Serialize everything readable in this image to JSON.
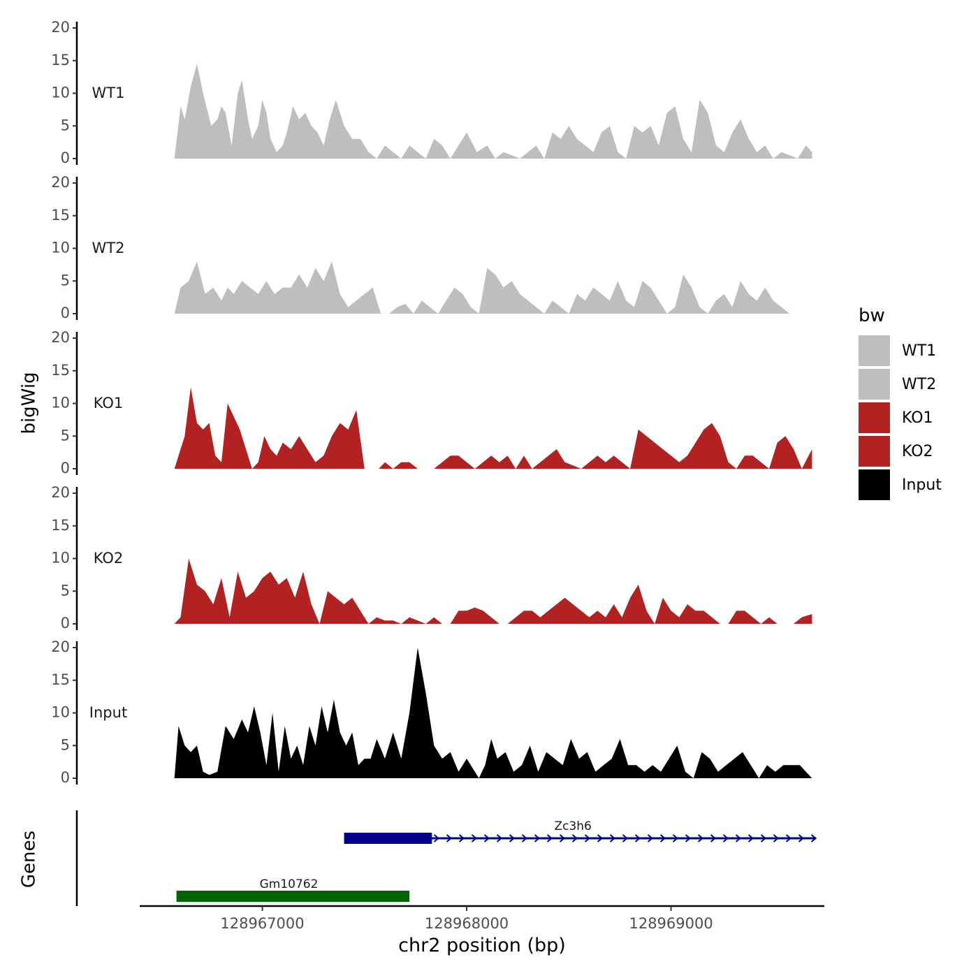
{
  "chart_data": {
    "type": "area",
    "y_axis_title": "bigWig",
    "x_axis_title": "chr2 position (bp)",
    "genes_axis_title": "Genes",
    "xlim": [
      128966400,
      128969750
    ],
    "ylim": [
      0,
      20
    ],
    "y_ticks": [
      0,
      5,
      10,
      15,
      20
    ],
    "x_ticks": [
      {
        "value": 128967000,
        "label": "128967000"
      },
      {
        "value": 128968000,
        "label": "128968000"
      },
      {
        "value": 128969000,
        "label": "128969000"
      }
    ],
    "legend": {
      "title": "bw",
      "items": [
        {
          "label": "WT1",
          "color": "#bebebe"
        },
        {
          "label": "WT2",
          "color": "#bebebe"
        },
        {
          "label": "KO1",
          "color": "#b22222"
        },
        {
          "label": "KO2",
          "color": "#b22222"
        },
        {
          "label": "Input",
          "color": "#000000"
        }
      ]
    },
    "series": [
      {
        "name": "WT1",
        "color": "#bebebe",
        "x": [
          128966570,
          128966600,
          128966620,
          128966650,
          128966680,
          128966710,
          128966750,
          128966780,
          128966800,
          128966820,
          128966850,
          128966880,
          128966900,
          128966930,
          128966950,
          128966980,
          128967000,
          128967020,
          128967040,
          128967070,
          128967100,
          128967120,
          128967150,
          128967180,
          128967210,
          128967240,
          128967270,
          128967300,
          128967330,
          128967360,
          128967400,
          128967440,
          128967480,
          128967520,
          128967560,
          128967600,
          128967640,
          128967680,
          128967720,
          128967760,
          128967800,
          128967840,
          128967880,
          128967920,
          128967960,
          128968000,
          128968050,
          128968100,
          128968140,
          128968180,
          128968220,
          128968260,
          128968300,
          128968340,
          128968380,
          128968420,
          128968460,
          128968500,
          128968540,
          128968580,
          128968620,
          128968660,
          128968700,
          128968740,
          128968780,
          128968820,
          128968860,
          128968900,
          128968940,
          128968980,
          128969020,
          128969060,
          128969100,
          128969140,
          128969180,
          128969220,
          128969260,
          128969300,
          128969340,
          128969380,
          128969420,
          128969460,
          128969500,
          128969540,
          128969580,
          128969620,
          128969660,
          128969690
        ],
        "values": [
          0,
          8,
          6,
          11,
          14.5,
          10,
          5,
          6,
          8,
          7,
          2,
          10,
          12,
          6,
          3,
          5,
          9,
          7,
          3,
          1,
          2,
          4,
          8,
          6,
          7,
          5,
          4,
          2,
          6,
          9,
          5,
          3,
          3,
          1,
          0,
          2,
          1,
          0,
          2,
          1,
          0,
          3,
          2,
          0,
          2,
          4,
          1,
          2,
          0,
          1,
          0.5,
          0,
          1,
          2,
          0,
          4,
          3,
          5,
          3,
          2,
          1,
          4,
          5,
          1,
          0,
          5,
          4,
          5,
          2,
          7,
          8,
          3,
          1,
          9,
          7,
          2,
          1,
          4,
          6,
          3,
          1,
          2,
          0,
          1,
          0.5,
          0,
          2,
          1
        ]
      },
      {
        "name": "WT2",
        "color": "#bebebe",
        "x": [
          128966570,
          128966600,
          128966640,
          128966680,
          128966720,
          128966760,
          128966800,
          128966830,
          128966860,
          128966900,
          128966940,
          128966980,
          128967020,
          128967060,
          128967100,
          128967140,
          128967180,
          128967220,
          128967260,
          128967300,
          128967340,
          128967380,
          128967420,
          128967460,
          128967500,
          128967540,
          128967580,
          128967620,
          128967660,
          128967700,
          128967740,
          128967780,
          128967820,
          128967860,
          128967900,
          128967940,
          128967980,
          128968020,
          128968060,
          128968100,
          128968140,
          128968180,
          128968220,
          128968260,
          128968300,
          128968340,
          128968380,
          128968420,
          128968460,
          128968500,
          128968540,
          128968580,
          128968620,
          128968660,
          128968700,
          128968740,
          128968780,
          128968820,
          128968860,
          128968900,
          128968940,
          128968980,
          128969020,
          128969060,
          128969100,
          128969140,
          128969180,
          128969220,
          128969260,
          128969300,
          128969340,
          128969380,
          128969420,
          128969460,
          128969500,
          128969540,
          128969580,
          128969620,
          128969660,
          128969690
        ],
        "values": [
          0,
          4,
          5,
          8,
          3,
          4,
          2,
          4,
          3,
          5,
          4,
          3,
          5,
          3,
          4,
          4,
          6,
          4,
          7,
          5,
          8,
          3,
          1,
          2,
          3,
          4,
          0,
          0,
          1,
          1.5,
          0,
          2,
          1,
          0,
          2,
          4,
          3,
          1,
          0,
          7,
          6,
          4,
          5,
          3,
          2,
          1,
          0,
          2,
          1,
          0,
          3,
          2,
          4,
          3,
          2,
          5,
          2,
          1,
          5,
          4,
          2,
          0,
          1,
          6,
          4,
          1,
          0,
          2,
          3,
          1,
          5,
          3,
          2,
          4,
          2,
          1,
          0,
          0,
          0,
          0
        ],
        "note_breaks": "approximate"
      },
      {
        "name": "KO1",
        "color": "#b22222",
        "x": [
          128966570,
          128966590,
          128966620,
          128966650,
          128966680,
          128966710,
          128966740,
          128966770,
          128966800,
          128966830,
          128966860,
          128966890,
          128966920,
          128966950,
          128966980,
          128967010,
          128967040,
          128967070,
          128967100,
          128967140,
          128967180,
          128967220,
          128967260,
          128967300,
          128967340,
          128967380,
          128967420,
          128967460,
          128967500,
          128967540,
          128967570,
          128967600,
          128967640,
          128967680,
          128967720,
          128967760,
          128967800,
          128967840,
          128967880,
          128967920,
          128967960,
          128968000,
          128968040,
          128968080,
          128968120,
          128968160,
          128968200,
          128968240,
          128968280,
          128968320,
          128968360,
          128968400,
          128968440,
          128968480,
          128968520,
          128968560,
          128968600,
          128968640,
          128968680,
          128968720,
          128968760,
          128968800,
          128968840,
          128968880,
          128968920,
          128968960,
          128969000,
          128969040,
          128969080,
          128969120,
          128969160,
          128969200,
          128969240,
          128969280,
          128969320,
          128969360,
          128969400,
          128969440,
          128969480,
          128969520,
          128969560,
          128969600,
          128969640,
          128969690
        ],
        "values": [
          0,
          2,
          5,
          12.5,
          7,
          6,
          7,
          2,
          1,
          10,
          8,
          6,
          3,
          0,
          1,
          5,
          3,
          2,
          4,
          3,
          5,
          3,
          1,
          2,
          5,
          7,
          6,
          9,
          0,
          0,
          0,
          1,
          0,
          1,
          1,
          0,
          0,
          0,
          1,
          2,
          2,
          1,
          0,
          1,
          2,
          1,
          2,
          0,
          2,
          0,
          1,
          2,
          3,
          1,
          0.5,
          0,
          1,
          2,
          1,
          2,
          1,
          0,
          6,
          5,
          4,
          3,
          2,
          1,
          2,
          4,
          6,
          7,
          5,
          1,
          0,
          2,
          2,
          1,
          0,
          4,
          5,
          3,
          0,
          3
        ]
      },
      {
        "name": "KO2",
        "color": "#b22222",
        "x": [
          128966570,
          128966600,
          128966640,
          128966680,
          128966720,
          128966760,
          128966800,
          128966840,
          128966880,
          128966920,
          128966960,
          128967000,
          128967040,
          128967080,
          128967120,
          128967160,
          128967200,
          128967240,
          128967280,
          128967320,
          128967360,
          128967400,
          128967440,
          128967480,
          128967520,
          128967560,
          128967600,
          128967640,
          128967680,
          128967720,
          128967760,
          128967800,
          128967840,
          128967880,
          128967920,
          128967960,
          128968000,
          128968040,
          128968080,
          128968120,
          128968160,
          128968200,
          128968240,
          128968280,
          128968320,
          128968360,
          128968400,
          128968440,
          128968480,
          128968520,
          128968560,
          128968600,
          128968640,
          128968680,
          128968720,
          128968760,
          128968800,
          128968840,
          128968880,
          128968920,
          128968960,
          128969000,
          128969040,
          128969080,
          128969120,
          128969160,
          128969200,
          128969240,
          128969280,
          128969320,
          128969360,
          128969400,
          128969440,
          128969480,
          128969520,
          128969560,
          128969600,
          128969640,
          128969690
        ],
        "values": [
          0,
          1,
          10,
          6,
          5,
          3,
          7,
          1,
          8,
          4,
          5,
          7,
          8,
          6,
          7,
          4,
          8,
          3,
          0,
          5,
          4,
          3,
          4,
          2,
          0,
          1,
          0.5,
          0.5,
          0,
          1,
          0.5,
          0,
          1,
          0,
          0,
          2,
          2,
          2.5,
          2,
          1,
          0,
          0,
          1,
          2,
          2,
          1,
          2,
          3,
          4,
          3,
          2,
          1,
          2,
          1,
          3,
          1,
          4,
          6,
          2,
          0,
          4,
          2,
          1,
          3,
          2,
          2,
          1,
          0,
          0,
          2,
          2,
          1,
          0,
          1,
          0,
          0,
          0,
          1,
          1.5
        ]
      },
      {
        "name": "Input",
        "color": "#000000",
        "x": [
          128966570,
          128966590,
          128966620,
          128966650,
          128966680,
          128966710,
          128966740,
          128966780,
          128966820,
          128966860,
          128966900,
          128966930,
          128966960,
          128966990,
          128967020,
          128967050,
          128967080,
          128967110,
          128967140,
          128967170,
          128967200,
          128967230,
          128967260,
          128967290,
          128967320,
          128967350,
          128967380,
          128967410,
          128967440,
          128967470,
          128967500,
          128967530,
          128967560,
          128967600,
          128967640,
          128967680,
          128967720,
          128967760,
          128967800,
          128967840,
          128967880,
          128967920,
          128967960,
          128968000,
          128968040,
          128968060,
          128968090,
          128968120,
          128968150,
          128968190,
          128968230,
          128968270,
          128968310,
          128968350,
          128968390,
          128968430,
          128968470,
          128968510,
          128968550,
          128968590,
          128968630,
          128968670,
          128968710,
          128968750,
          128968790,
          128968830,
          128968870,
          128968910,
          128968950,
          128968990,
          128969030,
          128969070,
          128969110,
          128969150,
          128969190,
          128969230,
          128969270,
          128969310,
          128969350,
          128969390,
          128969430,
          128969470,
          128969510,
          128969550,
          128969590,
          128969630,
          128969660,
          128969690
        ],
        "values": [
          0,
          8,
          5,
          4,
          5,
          1,
          0.5,
          1,
          8,
          6,
          9,
          7,
          11,
          7,
          2,
          10,
          1,
          8,
          3,
          5,
          2,
          8,
          5,
          11,
          7,
          12,
          7,
          5,
          7,
          2,
          3,
          3,
          6,
          3,
          7,
          3,
          10,
          20,
          13,
          5,
          3,
          4,
          1,
          3,
          1,
          0,
          2,
          6,
          3,
          4,
          1,
          2,
          5,
          1,
          4,
          3,
          2,
          6,
          3,
          4,
          1,
          2,
          3,
          6,
          2,
          2,
          1,
          2,
          1,
          3,
          5,
          1,
          0,
          4,
          3,
          1,
          2,
          3,
          4,
          2,
          0,
          2,
          1,
          2,
          2,
          2,
          1,
          0
        ]
      }
    ],
    "genes": [
      {
        "name": "Zc3h6",
        "start": 128967400,
        "end": 128969710,
        "cds_start": 128967400,
        "cds_end": 128967830,
        "strand": "+",
        "color": "#00008b",
        "row": 1
      },
      {
        "name": "Gm10762",
        "start": 128966580,
        "end": 128967720,
        "cds_start": 128966580,
        "cds_end": 128967720,
        "strand": "-",
        "color": "#006400",
        "row": 2
      }
    ]
  }
}
